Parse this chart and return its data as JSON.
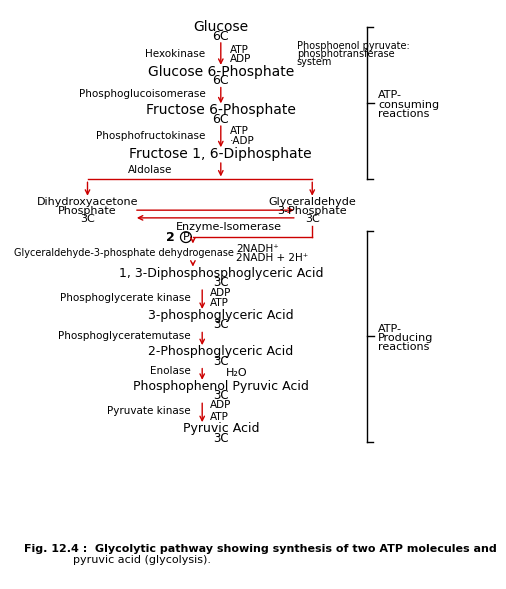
{
  "bg_color": "#ffffff",
  "arrow_color": "#cc0000",
  "text_color": "#000000",
  "fig_caption_line1": "Fig. 12.4 :  Glycolytic pathway showing synthesis of two ATP molecules and",
  "fig_caption_line2": "              pyruvic acid (glycolysis)."
}
